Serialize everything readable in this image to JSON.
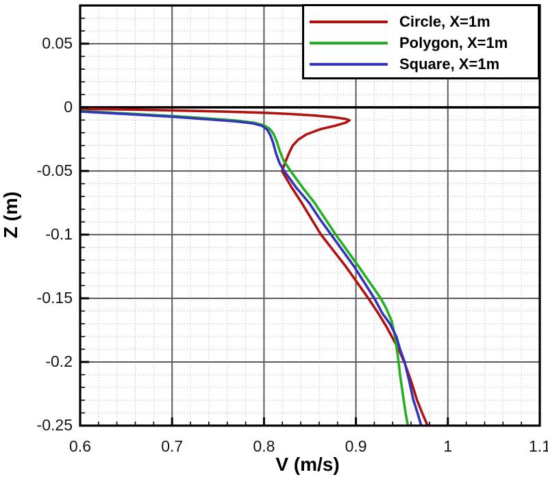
{
  "figure": {
    "background": "#ffffff",
    "border_color": "#000000",
    "zero_line_color": "#000000",
    "major_grid_color": "#5a5a5a",
    "minor_grid_color": "#b0b0b0"
  },
  "chart_data": {
    "type": "line",
    "title": "",
    "xlabel": "V (m/s)",
    "ylabel": "Z (m)",
    "xlim": [
      0.6,
      1.1
    ],
    "ylim": [
      -0.25,
      0.08
    ],
    "x_minor_step": 0.02,
    "y_minor_step": 0.01,
    "zero_line_z": 0,
    "grid": {
      "major_solid": true,
      "minor_dotted": true
    },
    "legend_position": "top-right",
    "x_ticks": [
      {
        "v": 0.6,
        "label": "0.6"
      },
      {
        "v": 0.7,
        "label": "0.7"
      },
      {
        "v": 0.8,
        "label": "0.8"
      },
      {
        "v": 0.9,
        "label": "0.9"
      },
      {
        "v": 1.0,
        "label": "1"
      },
      {
        "v": 1.1,
        "label": "1.1"
      }
    ],
    "y_ticks": [
      {
        "v": 0.05,
        "label": "0.05"
      },
      {
        "v": 0.0,
        "label": "0"
      },
      {
        "v": -0.05,
        "label": "-0.05"
      },
      {
        "v": -0.1,
        "label": "-0.1"
      },
      {
        "v": -0.15,
        "label": "-0.15"
      },
      {
        "v": -0.2,
        "label": "-0.2"
      },
      {
        "v": -0.25,
        "label": "-0.25"
      }
    ],
    "series": [
      {
        "name": "Circle, X=1m",
        "color": "#b01111",
        "points": [
          [
            0.6,
            -0.0012
          ],
          [
            0.64,
            -0.0016
          ],
          [
            0.68,
            -0.0021
          ],
          [
            0.72,
            -0.0027
          ],
          [
            0.76,
            -0.0034
          ],
          [
            0.8,
            -0.0043
          ],
          [
            0.83,
            -0.0053
          ],
          [
            0.855,
            -0.0064
          ],
          [
            0.875,
            -0.0077
          ],
          [
            0.888,
            -0.009
          ],
          [
            0.893,
            -0.0102
          ],
          [
            0.889,
            -0.012
          ],
          [
            0.878,
            -0.0143
          ],
          [
            0.861,
            -0.0172
          ],
          [
            0.846,
            -0.0213
          ],
          [
            0.837,
            -0.0255
          ],
          [
            0.831,
            -0.0303
          ],
          [
            0.8275,
            -0.0355
          ],
          [
            0.8235,
            -0.0425
          ],
          [
            0.8195,
            -0.05
          ],
          [
            0.8297,
            -0.0625
          ],
          [
            0.841,
            -0.075
          ],
          [
            0.8515,
            -0.0875
          ],
          [
            0.862,
            -0.1
          ],
          [
            0.889,
            -0.125
          ],
          [
            0.9135,
            -0.15
          ],
          [
            0.9245,
            -0.162
          ],
          [
            0.933,
            -0.172
          ],
          [
            0.9465,
            -0.19
          ],
          [
            0.9525,
            -0.2
          ],
          [
            0.96,
            -0.215
          ],
          [
            0.9665,
            -0.23
          ],
          [
            0.9735,
            -0.2425
          ],
          [
            0.978,
            -0.25
          ]
        ]
      },
      {
        "name": "Polygon, X=1m",
        "color": "#22b022",
        "points": [
          [
            0.6,
            -0.0028
          ],
          [
            0.65,
            -0.0048
          ],
          [
            0.7,
            -0.0068
          ],
          [
            0.74,
            -0.0088
          ],
          [
            0.77,
            -0.0104
          ],
          [
            0.79,
            -0.0122
          ],
          [
            0.8,
            -0.0142
          ],
          [
            0.806,
            -0.0168
          ],
          [
            0.8105,
            -0.021
          ],
          [
            0.814,
            -0.027
          ],
          [
            0.817,
            -0.034
          ],
          [
            0.8215,
            -0.042
          ],
          [
            0.829,
            -0.05
          ],
          [
            0.842,
            -0.063
          ],
          [
            0.855,
            -0.075
          ],
          [
            0.867,
            -0.088
          ],
          [
            0.878,
            -0.1
          ],
          [
            0.903,
            -0.125
          ],
          [
            0.927,
            -0.15
          ],
          [
            0.933,
            -0.158
          ],
          [
            0.939,
            -0.168
          ],
          [
            0.9425,
            -0.18
          ],
          [
            0.9455,
            -0.195
          ],
          [
            0.948,
            -0.21
          ],
          [
            0.951,
            -0.225
          ],
          [
            0.954,
            -0.24
          ],
          [
            0.9565,
            -0.25
          ]
        ]
      },
      {
        "name": "Square, X=1m",
        "color": "#3434bb",
        "points": [
          [
            0.6,
            -0.0033
          ],
          [
            0.65,
            -0.0053
          ],
          [
            0.7,
            -0.0074
          ],
          [
            0.74,
            -0.0095
          ],
          [
            0.77,
            -0.0111
          ],
          [
            0.788,
            -0.0126
          ],
          [
            0.798,
            -0.0146
          ],
          [
            0.8035,
            -0.0176
          ],
          [
            0.807,
            -0.022
          ],
          [
            0.81,
            -0.028
          ],
          [
            0.813,
            -0.036
          ],
          [
            0.817,
            -0.044
          ],
          [
            0.822,
            -0.05
          ],
          [
            0.835,
            -0.063
          ],
          [
            0.849,
            -0.075
          ],
          [
            0.861,
            -0.088
          ],
          [
            0.873,
            -0.1
          ],
          [
            0.898,
            -0.125
          ],
          [
            0.92,
            -0.15
          ],
          [
            0.929,
            -0.162
          ],
          [
            0.937,
            -0.17
          ],
          [
            0.944,
            -0.18
          ],
          [
            0.948,
            -0.19
          ],
          [
            0.953,
            -0.2
          ],
          [
            0.958,
            -0.215
          ],
          [
            0.9625,
            -0.23
          ],
          [
            0.967,
            -0.24
          ],
          [
            0.971,
            -0.25
          ]
        ]
      }
    ]
  }
}
